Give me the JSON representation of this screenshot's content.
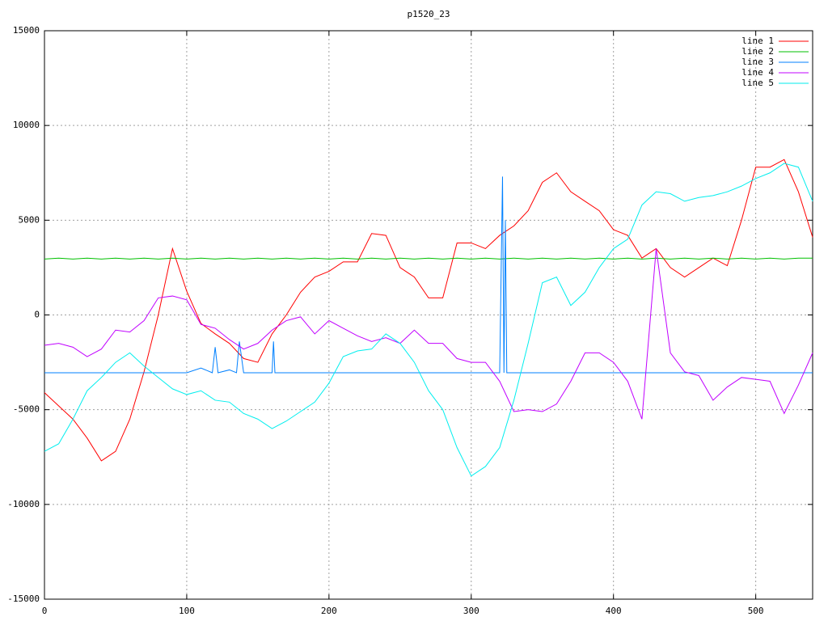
{
  "chart_data": {
    "type": "line",
    "title": "p1520_23",
    "x": [
      0,
      10,
      20,
      30,
      40,
      50,
      60,
      70,
      80,
      90,
      100,
      110,
      120,
      130,
      140,
      150,
      160,
      170,
      180,
      190,
      200,
      210,
      220,
      230,
      240,
      250,
      260,
      270,
      280,
      290,
      300,
      310,
      320,
      330,
      340,
      350,
      360,
      370,
      380,
      390,
      400,
      410,
      420,
      430,
      440,
      450,
      460,
      470,
      480,
      490,
      500,
      510,
      520,
      530,
      540
    ],
    "xlim": [
      0,
      540
    ],
    "xticks": [
      0,
      100,
      200,
      300,
      400,
      500
    ],
    "ylim": [
      -15000,
      15000
    ],
    "yticks": [
      -15000,
      -10000,
      -5000,
      0,
      5000,
      10000,
      15000
    ],
    "grid": true,
    "legend": "top-right",
    "series": [
      {
        "name": "line 1",
        "color": "#ff0000",
        "values": [
          -4100,
          -4800,
          -5500,
          -6500,
          -7700,
          -7200,
          -5500,
          -3000,
          0,
          3500,
          1250,
          -450,
          -1000,
          -1500,
          -2300,
          -2500,
          -1000,
          0,
          1200,
          2000,
          2300,
          2800,
          2800,
          4300,
          4200,
          2500,
          2000,
          900,
          900,
          3800,
          3800,
          3500,
          4200,
          4700,
          5500,
          7000,
          7500,
          6500,
          6000,
          5500,
          4500,
          4200,
          3000,
          3500,
          2500,
          2000,
          2500,
          3000,
          2600,
          5000,
          7800,
          7800,
          8200,
          6500,
          4100
        ]
      },
      {
        "name": "line 2",
        "color": "#00c000",
        "values": [
          2950,
          3000,
          2950,
          3000,
          2950,
          3000,
          2950,
          3000,
          2950,
          3000,
          2950,
          3000,
          2950,
          3000,
          2950,
          3000,
          2950,
          3000,
          2950,
          3000,
          2950,
          3000,
          2950,
          3000,
          2950,
          3000,
          2950,
          3000,
          2950,
          3000,
          2950,
          3000,
          2950,
          3000,
          2950,
          3000,
          2950,
          3000,
          2950,
          3000,
          2950,
          3000,
          2950,
          3000,
          2950,
          3000,
          2950,
          3000,
          2950,
          3000,
          2950,
          3000,
          2950,
          3000,
          3000
        ]
      },
      {
        "name": "line 3",
        "color": "#0080ff",
        "x": [
          0,
          100,
          110,
          118,
          120,
          122,
          130,
          135,
          137,
          140,
          160,
          161,
          162,
          200,
          320,
          322,
          323,
          324,
          325,
          326,
          540
        ],
        "values": [
          -3050,
          -3050,
          -2800,
          -3050,
          -1700,
          -3050,
          -2900,
          -3050,
          -1400,
          -3050,
          -3050,
          -1400,
          -3050,
          -3050,
          -3050,
          7300,
          -3050,
          5000,
          -3050,
          -3050,
          -3050
        ]
      },
      {
        "name": "line 4",
        "color": "#c000ff",
        "values": [
          -1600,
          -1500,
          -1700,
          -2200,
          -1800,
          -800,
          -900,
          -300,
          900,
          1000,
          800,
          -500,
          -700,
          -1300,
          -1800,
          -1500,
          -800,
          -300,
          -100,
          -1000,
          -300,
          -700,
          -1100,
          -1400,
          -1200,
          -1500,
          -800,
          -1500,
          -1500,
          -2300,
          -2500,
          -2500,
          -3500,
          -5100,
          -5000,
          -5100,
          -4700,
          -3500,
          -2000,
          -2000,
          -2500,
          -3500,
          -5500,
          3500,
          -2000,
          -3000,
          -3200,
          -4500,
          -3800,
          -3300,
          -3400,
          -3500,
          -5200,
          -3700,
          -2000
        ]
      },
      {
        "name": "line 5",
        "color": "#00eeee",
        "values": [
          -7200,
          -6800,
          -5500,
          -4000,
          -3300,
          -2500,
          -2000,
          -2700,
          -3300,
          -3900,
          -4200,
          -4000,
          -4500,
          -4600,
          -5200,
          -5500,
          -6000,
          -5600,
          -5100,
          -4600,
          -3600,
          -2200,
          -1900,
          -1800,
          -1000,
          -1500,
          -2500,
          -4000,
          -5000,
          -7000,
          -8500,
          -8000,
          -7000,
          -4500,
          -1500,
          1700,
          2000,
          500,
          1200,
          2500,
          3500,
          4000,
          5800,
          6500,
          6400,
          6000,
          6200,
          6300,
          6500,
          6800,
          7200,
          7500,
          8000,
          7800,
          6000
        ]
      }
    ]
  }
}
